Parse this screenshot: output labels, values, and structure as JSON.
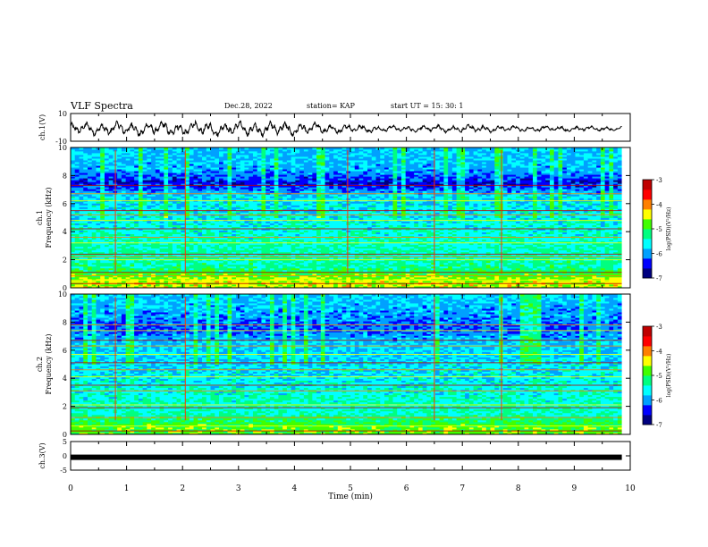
{
  "header": {
    "title": "VLF Spectra",
    "date": "Dec.28, 2022",
    "station": "station= KAP",
    "start": "start  UT =  15: 30: 1"
  },
  "chart_data": [
    {
      "type": "line",
      "panel": "ch1-waveform",
      "ylabel": "ch.1(V)",
      "ylim": [
        -10,
        10
      ],
      "yticks": [
        "10",
        "-10"
      ],
      "x_range_min": [
        0,
        9.85
      ],
      "amplitude_envelope": [
        {
          "t": 0,
          "amp": 4
        },
        {
          "t": 1,
          "amp": 5
        },
        {
          "t": 2,
          "amp": 5
        },
        {
          "t": 3,
          "amp": 5
        },
        {
          "t": 4,
          "amp": 5
        },
        {
          "t": 5,
          "amp": 3
        },
        {
          "t": 6,
          "amp": 2
        },
        {
          "t": 7,
          "amp": 3
        },
        {
          "t": 8,
          "amp": 2
        },
        {
          "t": 9,
          "amp": 2
        },
        {
          "t": 9.85,
          "amp": 1.5
        }
      ],
      "offset_V": -1.0
    },
    {
      "type": "heatmap",
      "panel": "ch1-spectrogram",
      "ylabel": "ch.1\nFrequency (kHz)",
      "ylabel_line1": "ch.1",
      "ylabel_line2": "Frequency (kHz)",
      "ylim": [
        0,
        10
      ],
      "yticks": [
        "0",
        "2",
        "4",
        "6",
        "8",
        "10"
      ],
      "x_range_min": [
        0,
        9.85
      ],
      "log_psd_background_by_freq_kHz": [
        {
          "f": 0.5,
          "v": -4.5
        },
        {
          "f": 1.5,
          "v": -5.3
        },
        {
          "f": 3,
          "v": -5.4
        },
        {
          "f": 5,
          "v": -5.6
        },
        {
          "f": 6.5,
          "v": -5.7
        },
        {
          "f": 7.5,
          "v": -6.5
        },
        {
          "f": 8.5,
          "v": -5.9
        },
        {
          "f": 9.8,
          "v": -5.8
        }
      ],
      "narrowband_lines_kHz": [
        0.3,
        0.55,
        0.85,
        1.1,
        2.0,
        2.2,
        2.4,
        3.2,
        3.6,
        4.2,
        4.8,
        5.2,
        5.5,
        6.2,
        6.7,
        7.3
      ],
      "impulses_min": [
        0.8,
        2.05,
        4.95,
        6.5,
        7.7
      ]
    },
    {
      "type": "heatmap",
      "panel": "ch2-spectrogram",
      "ylabel_line1": "ch.2",
      "ylabel_line2": "Frequency (kHz)",
      "ylim": [
        0,
        10
      ],
      "yticks": [
        "0",
        "2",
        "4",
        "6",
        "8",
        "10"
      ],
      "x_range_min": [
        0,
        9.85
      ],
      "log_psd_background_by_freq_kHz": [
        {
          "f": 0.5,
          "v": -4.8
        },
        {
          "f": 1.5,
          "v": -5.4
        },
        {
          "f": 3,
          "v": -5.5
        },
        {
          "f": 5,
          "v": -5.7
        },
        {
          "f": 6.5,
          "v": -5.8
        },
        {
          "f": 7.5,
          "v": -6.2
        },
        {
          "f": 8.5,
          "v": -6.0
        },
        {
          "f": 9.8,
          "v": -5.8
        }
      ],
      "narrowband_lines_kHz": [
        0.25,
        0.6,
        1.2,
        1.9,
        2.1,
        3.1,
        3.5,
        4.1,
        4.6,
        5.1,
        5.7,
        6.3,
        6.7,
        7.4,
        7.8
      ],
      "impulses_min": [
        0.8,
        2.05,
        6.5,
        7.7
      ]
    },
    {
      "type": "line",
      "panel": "ch3-waveform",
      "ylabel": "ch.3(V)",
      "ylim": [
        -5,
        5
      ],
      "yticks": [
        "5",
        "0",
        "-5"
      ],
      "x_range_min": [
        0,
        9.85
      ],
      "level_V": -0.5
    }
  ],
  "xaxis": {
    "label": "Time  (min)",
    "range": [
      0,
      10
    ],
    "ticks": [
      "0",
      "1",
      "2",
      "3",
      "4",
      "5",
      "6",
      "7",
      "8",
      "9",
      "10"
    ]
  },
  "colorbar": {
    "label": "log(PSD)(V²/Hz)",
    "range": [
      -7,
      -3
    ],
    "ticks": [
      "-3",
      "-4",
      "-5",
      "-6",
      "-7"
    ],
    "colormap": [
      "#000080",
      "#0000ff",
      "#00a0ff",
      "#00ffff",
      "#00ff80",
      "#40ff00",
      "#ffff00",
      "#ff8000",
      "#ff0000",
      "#c00000"
    ]
  }
}
